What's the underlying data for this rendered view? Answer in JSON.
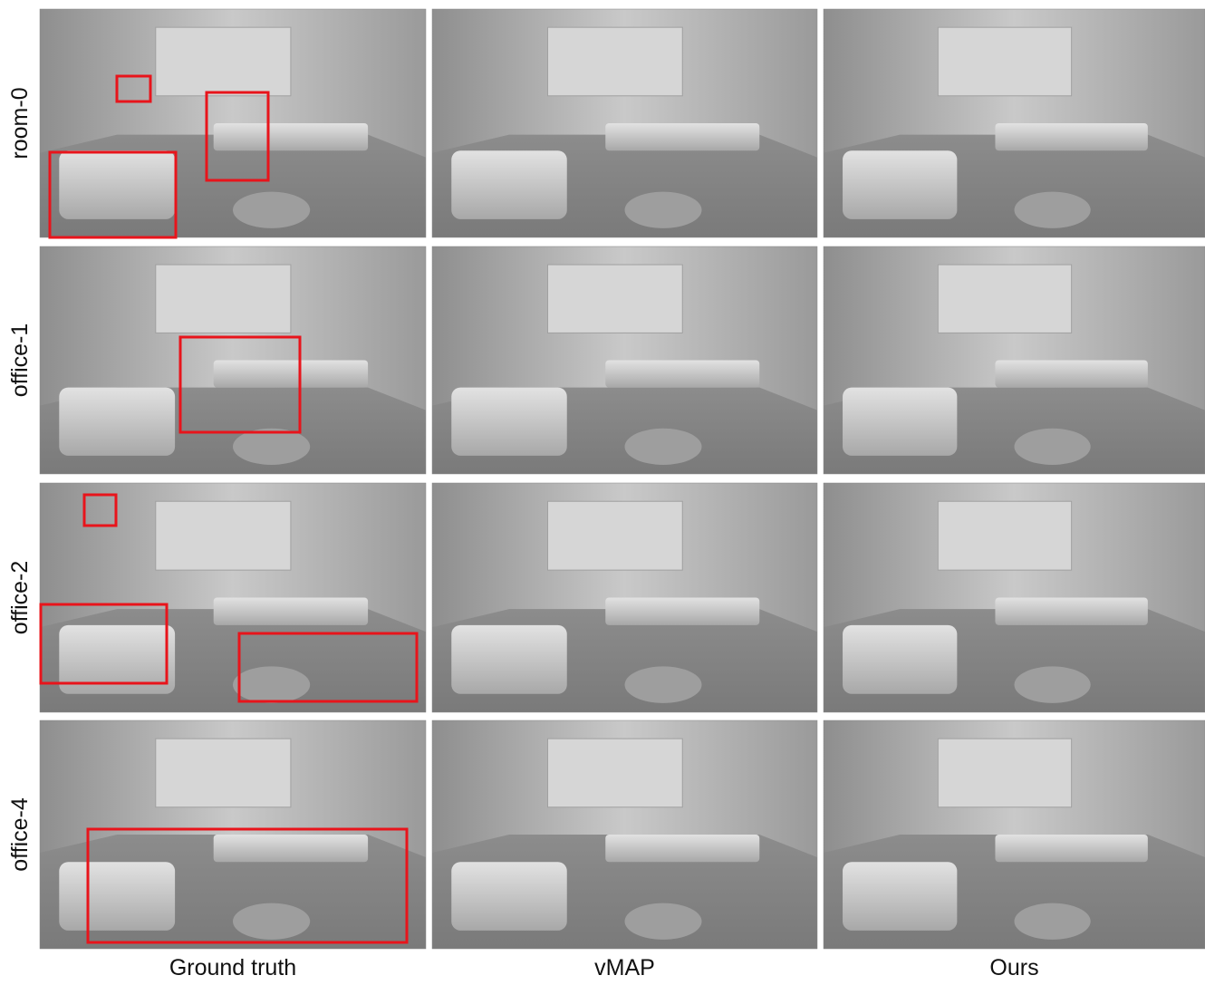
{
  "figure": {
    "columns": [
      "Ground truth",
      "vMAP",
      "Ours"
    ],
    "rows": [
      "room-0",
      "office-1",
      "office-2",
      "office-4"
    ]
  }
}
